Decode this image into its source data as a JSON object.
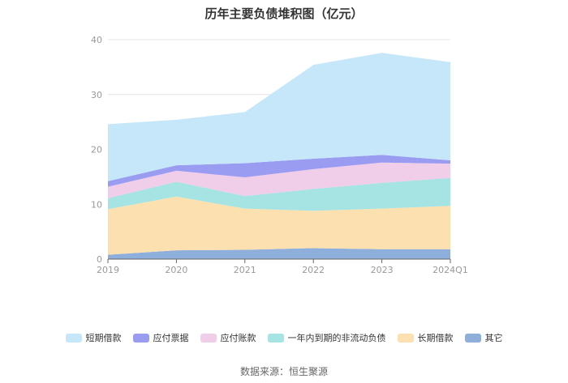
{
  "title": "历年主要负债堆积图（亿元）",
  "source": "数据来源：恒生聚源",
  "chart_data": {
    "type": "area",
    "stacked": true,
    "x": [
      "2019",
      "2020",
      "2021",
      "2022",
      "2023",
      "2024Q1"
    ],
    "ylim": [
      0,
      40
    ],
    "yticks": [
      0,
      10,
      20,
      30,
      40
    ],
    "grid": true,
    "legend_position": "bottom",
    "series": [
      {
        "name": "其它",
        "color": "#8eaedc",
        "values": [
          0.8,
          1.6,
          1.7,
          2.0,
          1.8,
          1.8
        ]
      },
      {
        "name": "长期借款",
        "color": "#fde0b0",
        "values": [
          8.3,
          9.8,
          7.5,
          6.8,
          7.4,
          7.9
        ]
      },
      {
        "name": "一年内到期的非流动负债",
        "color": "#a6e3e3",
        "values": [
          2.0,
          2.7,
          2.3,
          4.0,
          4.7,
          5.1
        ]
      },
      {
        "name": "应付账款",
        "color": "#f0cde8",
        "values": [
          2.1,
          2.0,
          3.4,
          3.6,
          3.7,
          2.6
        ]
      },
      {
        "name": "应付票据",
        "color": "#9a9cf2",
        "values": [
          1.0,
          1.0,
          2.6,
          1.9,
          1.4,
          0.6
        ]
      },
      {
        "name": "短期借款",
        "color": "#c5e7f9",
        "values": [
          10.4,
          8.3,
          9.3,
          17.1,
          18.6,
          17.9
        ]
      }
    ]
  }
}
